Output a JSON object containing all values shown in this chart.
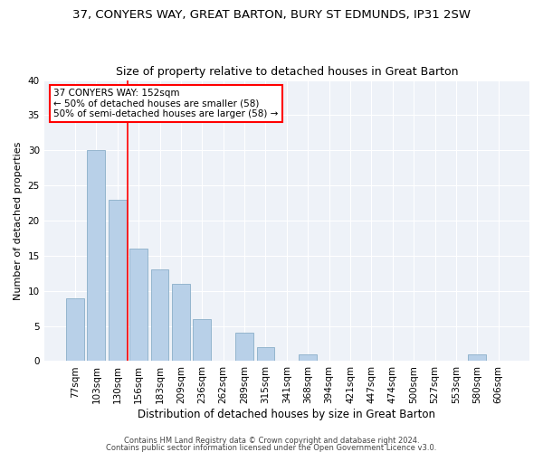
{
  "title": "37, CONYERS WAY, GREAT BARTON, BURY ST EDMUNDS, IP31 2SW",
  "subtitle": "Size of property relative to detached houses in Great Barton",
  "xlabel": "Distribution of detached houses by size in Great Barton",
  "ylabel": "Number of detached properties",
  "categories": [
    "77sqm",
    "103sqm",
    "130sqm",
    "156sqm",
    "183sqm",
    "209sqm",
    "236sqm",
    "262sqm",
    "289sqm",
    "315sqm",
    "341sqm",
    "368sqm",
    "394sqm",
    "421sqm",
    "447sqm",
    "474sqm",
    "500sqm",
    "527sqm",
    "553sqm",
    "580sqm",
    "606sqm"
  ],
  "values": [
    9,
    30,
    23,
    16,
    13,
    11,
    6,
    0,
    4,
    2,
    0,
    1,
    0,
    0,
    0,
    0,
    0,
    0,
    0,
    1,
    0
  ],
  "bar_color": "#b8d0e8",
  "bar_edge_color": "#8aaec8",
  "vline_x": 2.5,
  "vline_color": "red",
  "ylim": [
    0,
    40
  ],
  "yticks": [
    0,
    5,
    10,
    15,
    20,
    25,
    30,
    35,
    40
  ],
  "annotation_line1": "37 CONYERS WAY: 152sqm",
  "annotation_line2": "← 50% of detached houses are smaller (58)",
  "annotation_line3": "50% of semi-detached houses are larger (58) →",
  "annotation_box_color": "red",
  "footnote1": "Contains HM Land Registry data © Crown copyright and database right 2024.",
  "footnote2": "Contains public sector information licensed under the Open Government Licence v3.0.",
  "bg_color": "#eef2f8",
  "title_fontsize": 9.5,
  "subtitle_fontsize": 9,
  "xlabel_fontsize": 8.5,
  "ylabel_fontsize": 8,
  "tick_fontsize": 7.5,
  "annot_fontsize": 7.5,
  "footnote_fontsize": 6
}
